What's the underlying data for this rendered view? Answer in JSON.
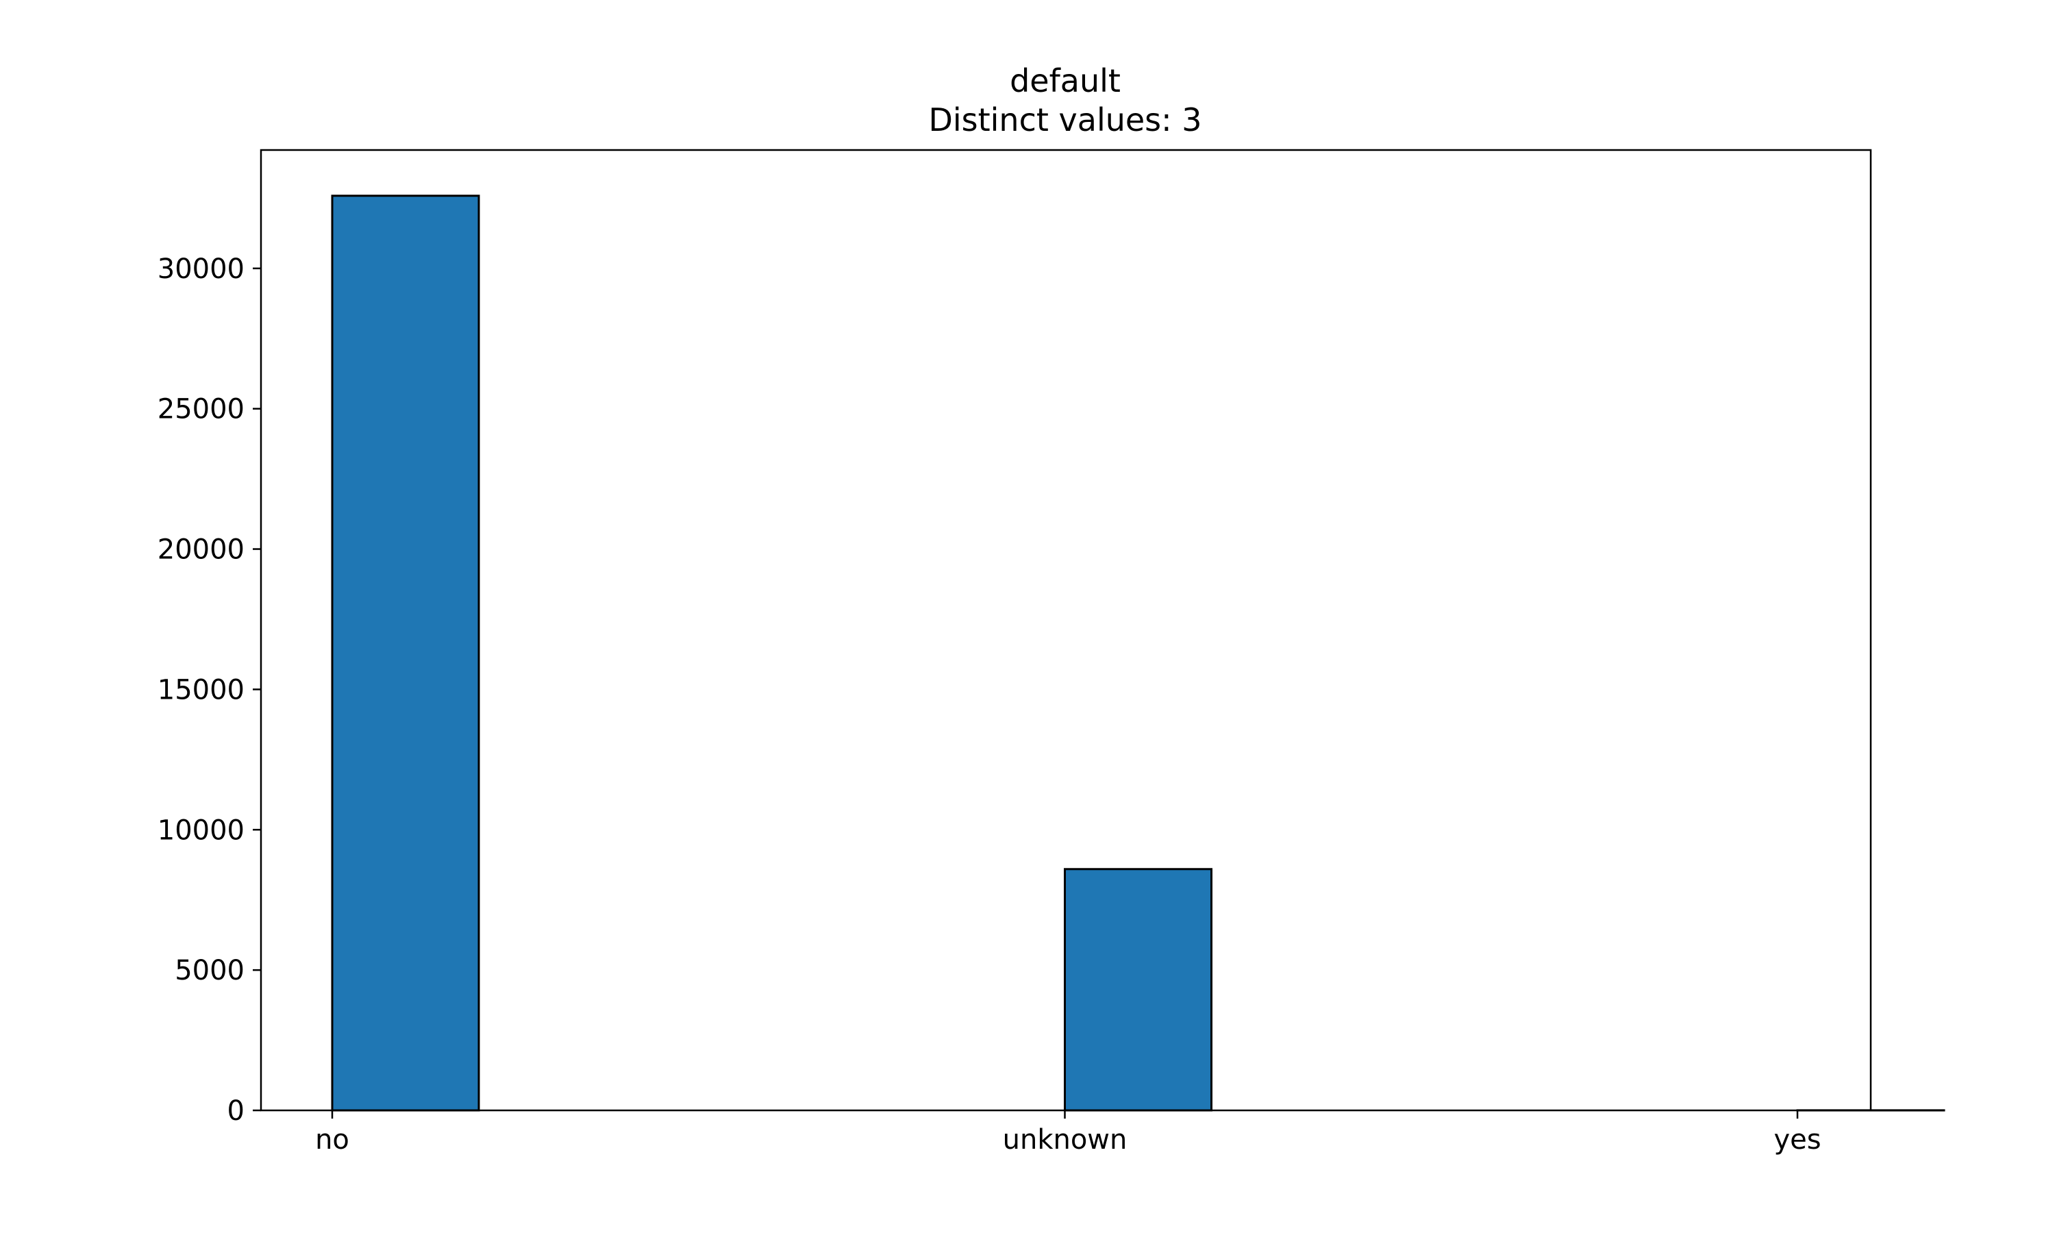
{
  "chart_data": {
    "type": "bar",
    "title": "default",
    "subtitle": "Distinct values: 3",
    "xlabel": "",
    "ylabel": "",
    "categories": [
      "no",
      "unknown",
      "yes"
    ],
    "values": [
      32588,
      8597,
      3
    ],
    "ylim": [
      0,
      34218
    ],
    "yticks": [
      0,
      5000,
      10000,
      15000,
      20000,
      25000,
      30000
    ],
    "ytick_labels": [
      "0",
      "5000",
      "10000",
      "15000",
      "20000",
      "25000",
      "30000"
    ],
    "grid": false,
    "legend": "none",
    "bar_color": "#1f77b4",
    "edge_color": "#000000"
  }
}
